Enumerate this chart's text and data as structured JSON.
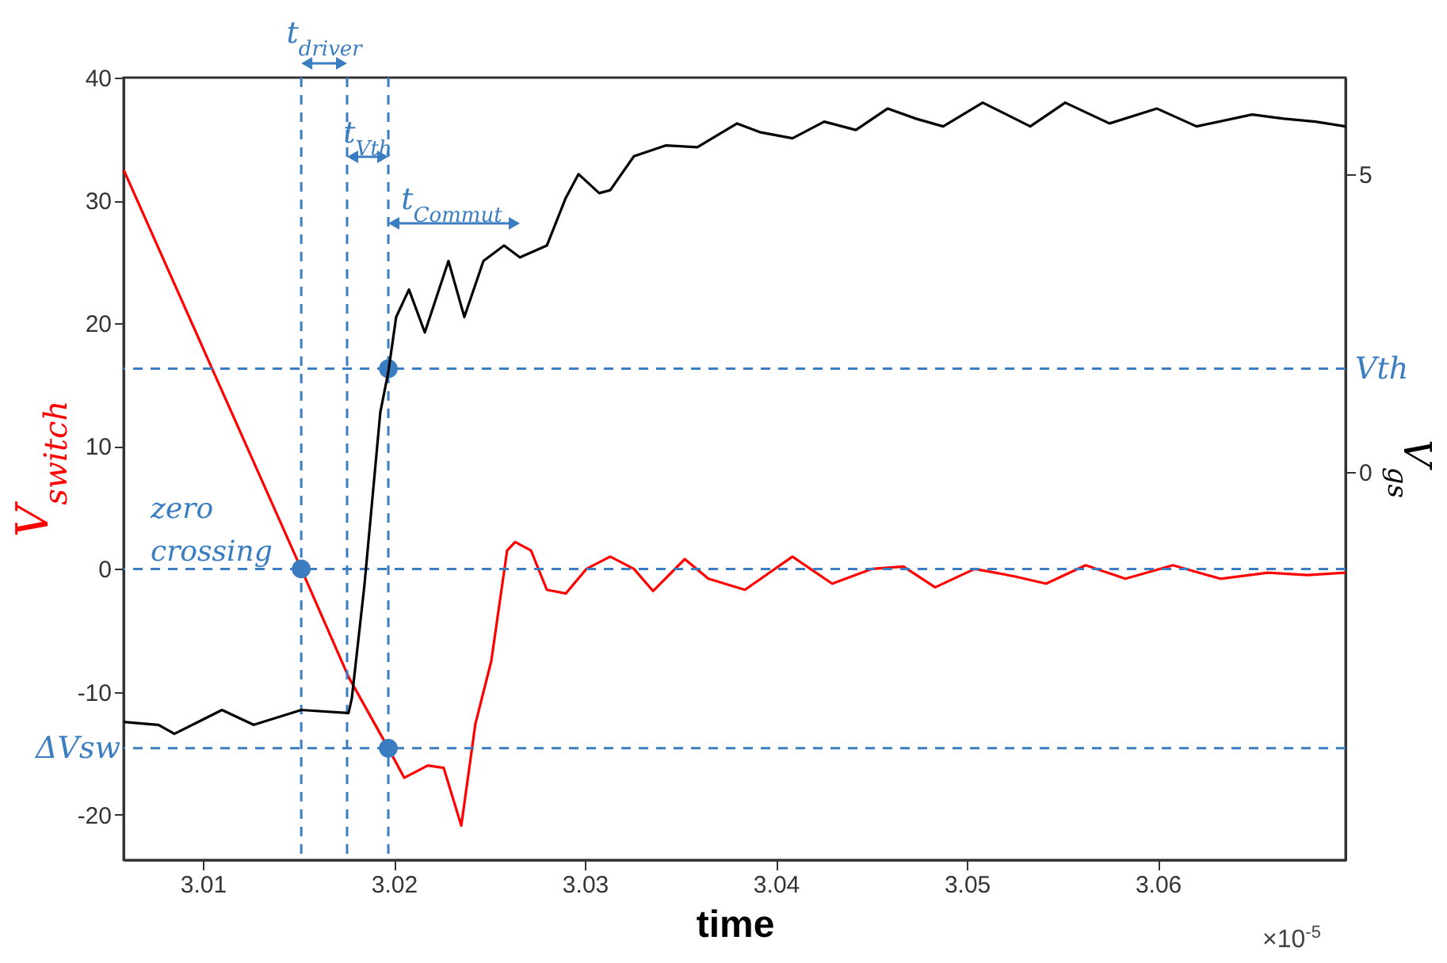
{
  "chart_data": {
    "type": "line",
    "xlabel": "time",
    "ylabel": "V$_{switch}$",
    "y2label": "V$_{gs}$",
    "annotations": [
      "t$_{driver}$",
      "t$_{Vth}$",
      "t$_{Commut}$",
      "zero crossing",
      "×10$^{-5}$"
    ],
    "xlim": [
      3.00585,
      3.06983
    ],
    "xticks": [
      3.01,
      3.02,
      3.03,
      3.04,
      3.05,
      3.06
    ],
    "ylim": [
      -23.7,
      40
    ],
    "yticks": [
      -20,
      -10,
      0,
      10,
      20,
      30,
      40
    ],
    "y2lim": [
      -6.52,
      6.62
    ],
    "y2ticks": [
      0,
      5
    ],
    "grid": false,
    "line_style": "solid",
    "series": [
      {
        "color": "#ff0000",
        "x": [
          3.00585,
          3.01017,
          3.01515,
          3.01763,
          3.01971,
          3.02054,
          3.02178,
          3.02261,
          3.02353,
          3.02427,
          3.0251,
          3.02593,
          3.02635,
          3.02718,
          3.02801,
          3.029,
          3.03008,
          3.03133,
          3.03257,
          3.03357,
          3.03523,
          3.03647,
          3.03838,
          3.04087,
          3.04295,
          3.04502,
          3.04668,
          3.04834,
          3.05041,
          3.05249,
          3.05415,
          3.05622,
          3.0583,
          3.06079,
          3.06328,
          3.06577,
          3.06784,
          3.06983
        ],
        "values": [
          32.5,
          17.4,
          0,
          -8.8,
          -14.6,
          -17,
          -16,
          -16.2,
          -20.9,
          -12.6,
          -7.5,
          1.5,
          2.2,
          1.5,
          -1.7,
          -2,
          0,
          1,
          0,
          -1.8,
          0.8,
          -0.8,
          -1.7,
          1,
          -1.2,
          0,
          0.2,
          -1.5,
          0,
          -0.6,
          -1.2,
          0.3,
          -0.8,
          0.3,
          -0.8,
          -0.3,
          -0.5,
          -0.3
        ]
      },
      {
        "color": "#000000",
        "axis": "y2",
        "x": [
          3.00585,
          3.00768,
          3.00851,
          3.011,
          3.01266,
          3.01515,
          3.01763,
          3.0178,
          3.01846,
          3.01929,
          3.01971,
          3.02012,
          3.02079,
          3.02162,
          3.02286,
          3.02369,
          3.02469,
          3.02577,
          3.0266,
          3.02801,
          3.029,
          3.02967,
          3.03075,
          3.03133,
          3.03257,
          3.03423,
          3.03589,
          3.03797,
          3.03921,
          3.04087,
          3.04253,
          3.04419,
          3.04585,
          3.04734,
          3.04876,
          3.05083,
          3.05332,
          3.05515,
          3.05747,
          3.05996,
          3.06203,
          3.06494,
          3.0666,
          3.06826,
          3.06983
        ],
        "values": [
          -4.2,
          -4.25,
          -4.4,
          -4,
          -4.25,
          -4,
          -4.05,
          -3.8,
          -1.9,
          1,
          1.68,
          2.6,
          3.06,
          2.34,
          3.54,
          2.6,
          3.54,
          3.8,
          3.6,
          3.8,
          4.6,
          5,
          4.68,
          4.73,
          5.3,
          5.48,
          5.45,
          5.85,
          5.7,
          5.6,
          5.88,
          5.74,
          6.1,
          5.93,
          5.8,
          6.2,
          5.8,
          6.2,
          5.85,
          6.1,
          5.8,
          6,
          5.93,
          5.88,
          5.8
        ]
      },
      {
        "type": "scatter",
        "color": "#3a7dc0",
        "marker": "circle",
        "x": [
          3.01515,
          3.01971,
          3.01971
        ],
        "values": [
          0,
          -14.6,
          16.3
        ]
      }
    ],
    "ref_lines": [
      {
        "axis": "x",
        "value": 3.01515,
        "color": "#3a7dc0",
        "line_style": "dashed"
      },
      {
        "axis": "x",
        "value": 3.01755,
        "color": "#3a7dc0",
        "line_style": "dashed"
      },
      {
        "axis": "x",
        "value": 3.01971,
        "color": "#3a7dc0",
        "line_style": "dashed"
      },
      {
        "axis": "y",
        "value": 0,
        "color": "#3a7dc0",
        "line_style": "dashed"
      },
      {
        "axis": "y",
        "value": 16.3,
        "label": "Vth",
        "color": "#3a7dc0",
        "line_style": "dashed"
      },
      {
        "axis": "y",
        "value": -14.6,
        "label": "ΔVsw",
        "color": "#3a7dc0",
        "line_style": "dashed"
      }
    ]
  }
}
